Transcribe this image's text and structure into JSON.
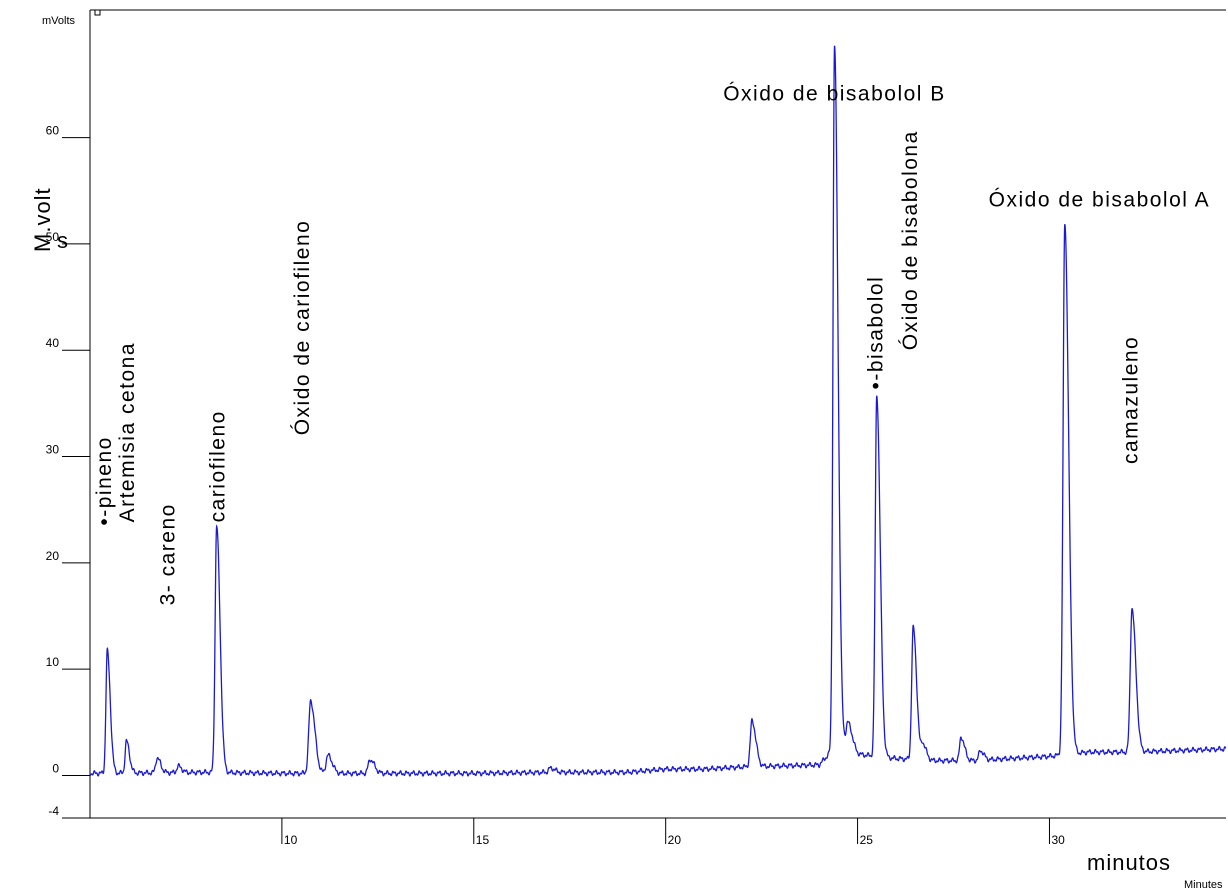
{
  "chart_data": {
    "type": "line",
    "unit_label_top": "mVolts",
    "unit_label_bottom": "Minutes",
    "xlabel": "minutos",
    "ylabel": "M.volt",
    "ylabel_extra": "s",
    "xlim": [
      5.0,
      34.6
    ],
    "ylim": [
      -4,
      72
    ],
    "x_ticks": [
      10,
      15,
      20,
      25,
      30
    ],
    "y_ticks": [
      -4,
      0,
      10,
      20,
      30,
      40,
      50,
      60
    ],
    "grid": false,
    "line_color": "#1a1ad6",
    "series": [
      {
        "baseline": [
          [
            5.0,
            0.2
          ],
          [
            8,
            0.3
          ],
          [
            10,
            0.2
          ],
          [
            12,
            0.2
          ],
          [
            15,
            0.2
          ],
          [
            17,
            0.3
          ],
          [
            19,
            0.3
          ],
          [
            20,
            0.6
          ],
          [
            21,
            0.6
          ],
          [
            22,
            0.8
          ],
          [
            23,
            0.9
          ],
          [
            24,
            1.0
          ],
          [
            24.5,
            3
          ],
          [
            25,
            2
          ],
          [
            26,
            1.6
          ],
          [
            27,
            1.4
          ],
          [
            28,
            1.4
          ],
          [
            29,
            1.6
          ],
          [
            30,
            1.8
          ],
          [
            31,
            2.2
          ],
          [
            32,
            2.2
          ],
          [
            33,
            2.3
          ],
          [
            34.6,
            2.5
          ]
        ],
        "peaks": [
          {
            "rt": 5.45,
            "h": 11.5,
            "w": 0.035
          },
          {
            "rt": 5.95,
            "h": 3.0,
            "w": 0.035
          },
          {
            "rt": 6.75,
            "h": 1.4,
            "w": 0.04
          },
          {
            "rt": 7.3,
            "h": 0.6,
            "w": 0.04
          },
          {
            "rt": 8.3,
            "h": 23.2,
            "w": 0.04
          },
          {
            "rt": 10.75,
            "h": 6.8,
            "w": 0.05
          },
          {
            "rt": 11.2,
            "h": 1.7,
            "w": 0.05
          },
          {
            "rt": 12.3,
            "h": 1.3,
            "w": 0.05
          },
          {
            "rt": 17.0,
            "h": 0.4,
            "w": 0.05
          },
          {
            "rt": 22.25,
            "h": 4.3,
            "w": 0.045
          },
          {
            "rt": 24.4,
            "h": 66.0,
            "w": 0.04
          },
          {
            "rt": 24.75,
            "h": 2.5,
            "w": 0.05
          },
          {
            "rt": 25.5,
            "h": 34.0,
            "w": 0.04
          },
          {
            "rt": 26.45,
            "h": 12.4,
            "w": 0.04
          },
          {
            "rt": 26.7,
            "h": 1.5,
            "w": 0.04
          },
          {
            "rt": 27.7,
            "h": 2.2,
            "w": 0.04
          },
          {
            "rt": 28.2,
            "h": 0.9,
            "w": 0.04
          },
          {
            "rt": 30.4,
            "h": 50.0,
            "w": 0.045
          },
          {
            "rt": 32.15,
            "h": 13.5,
            "w": 0.045
          }
        ]
      }
    ],
    "annotations": [
      {
        "text": "•-pineno",
        "x": 5.55,
        "y": 23.5,
        "vertical": true
      },
      {
        "text": "Artemisia cetona",
        "x": 6.15,
        "y": 23.8,
        "vertical": true
      },
      {
        "text": "3- careno",
        "x": 7.2,
        "y": 16.0,
        "vertical": true
      },
      {
        "text": "cariofileno",
        "x": 8.5,
        "y": 23.8,
        "vertical": true
      },
      {
        "text": "Óxido de cariofileno",
        "x": 10.7,
        "y": 32.0,
        "vertical": true
      },
      {
        "text": "•-bisabolol",
        "x": 25.65,
        "y": 36.3,
        "vertical": true
      },
      {
        "text": "Óxido de bisabolona",
        "x": 26.55,
        "y": 40.0,
        "vertical": true
      },
      {
        "text": "camazuleno",
        "x": 32.3,
        "y": 29.3,
        "vertical": true
      },
      {
        "text": "Óxido de bisabolol B",
        "x": 24.4,
        "y": 63.5,
        "vertical": false
      },
      {
        "text": "Óxido de bisabolol A",
        "x": 31.3,
        "y": 53.5,
        "vertical": false
      }
    ]
  }
}
